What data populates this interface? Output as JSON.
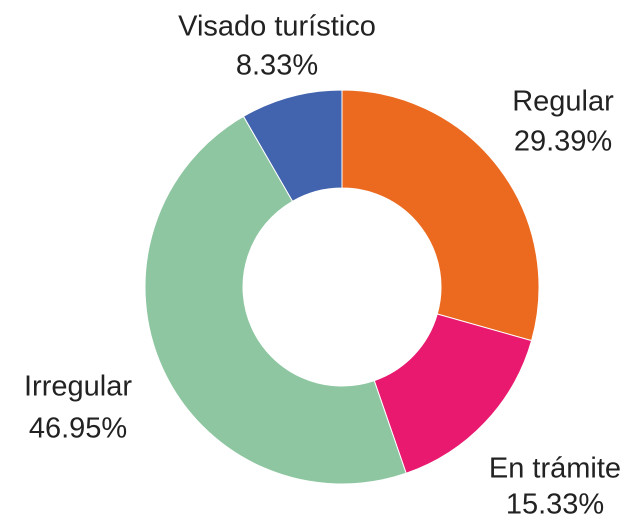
{
  "chart_data": {
    "type": "donut",
    "categories": [
      "Regular",
      "En trámite",
      "Irregular",
      "Visado turístico"
    ],
    "values": [
      29.39,
      15.33,
      46.95,
      8.33
    ],
    "value_labels": [
      "29.39%",
      "15.33%",
      "46.95%",
      "8.33%"
    ],
    "colors": [
      "#eb6a1f",
      "#e8196f",
      "#8dc6a0",
      "#4263ae"
    ]
  }
}
